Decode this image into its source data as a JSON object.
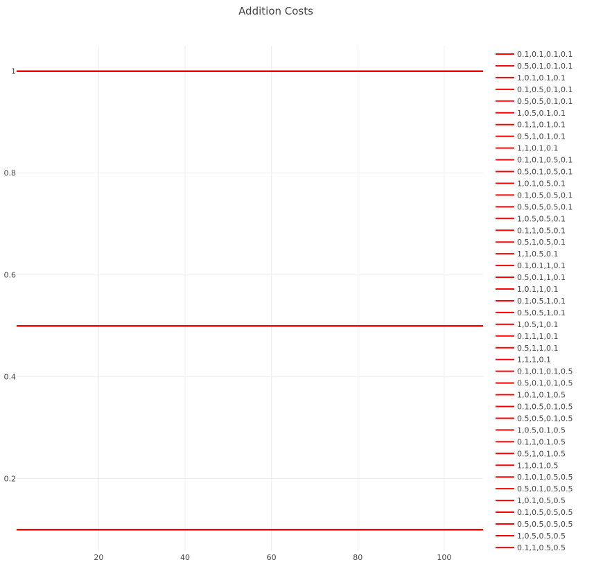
{
  "chart_data": {
    "type": "line",
    "title": "Addition Costs",
    "xlabel": "",
    "ylabel": "",
    "xlim": [
      1,
      109
    ],
    "ylim": [
      0.058,
      1.05
    ],
    "x_ticks": [
      20,
      40,
      60,
      80,
      100
    ],
    "y_ticks": [
      0.2,
      0.4,
      0.6,
      0.8,
      1
    ],
    "y_tick_labels": [
      "0.2",
      "0.4",
      "0.6",
      "0.8",
      "1"
    ],
    "x_tick_labels": [
      "20",
      "40",
      "60",
      "80",
      "100"
    ],
    "grid": true,
    "legend_position": "right",
    "line_color": "#ff0000",
    "x": [
      1,
      109
    ],
    "series": [
      {
        "name": "0.1,0.1,0.1,0.1",
        "values": [
          0.1,
          0.1
        ]
      },
      {
        "name": "0.5,0.1,0.1,0.1",
        "values": [
          0.5,
          0.5
        ]
      },
      {
        "name": "1,0.1,0.1,0.1",
        "values": [
          1,
          1
        ]
      },
      {
        "name": "0.1,0.5,0.1,0.1",
        "values": [
          0.1,
          0.1
        ]
      },
      {
        "name": "0.5,0.5,0.1,0.1",
        "values": [
          0.5,
          0.5
        ]
      },
      {
        "name": "1,0.5,0.1,0.1",
        "values": [
          1,
          1
        ]
      },
      {
        "name": "0.1,1,0.1,0.1",
        "values": [
          0.1,
          0.1
        ]
      },
      {
        "name": "0.5,1,0.1,0.1",
        "values": [
          0.5,
          0.5
        ]
      },
      {
        "name": "1,1,0.1,0.1",
        "values": [
          1,
          1
        ]
      },
      {
        "name": "0.1,0.1,0.5,0.1",
        "values": [
          0.1,
          0.1
        ]
      },
      {
        "name": "0.5,0.1,0.5,0.1",
        "values": [
          0.5,
          0.5
        ]
      },
      {
        "name": "1,0.1,0.5,0.1",
        "values": [
          1,
          1
        ]
      },
      {
        "name": "0.1,0.5,0.5,0.1",
        "values": [
          0.1,
          0.1
        ]
      },
      {
        "name": "0.5,0.5,0.5,0.1",
        "values": [
          0.5,
          0.5
        ]
      },
      {
        "name": "1,0.5,0.5,0.1",
        "values": [
          1,
          1
        ]
      },
      {
        "name": "0.1,1,0.5,0.1",
        "values": [
          0.1,
          0.1
        ]
      },
      {
        "name": "0.5,1,0.5,0.1",
        "values": [
          0.5,
          0.5
        ]
      },
      {
        "name": "1,1,0.5,0.1",
        "values": [
          1,
          1
        ]
      },
      {
        "name": "0.1,0.1,1,0.1",
        "values": [
          0.1,
          0.1
        ]
      },
      {
        "name": "0.5,0.1,1,0.1",
        "values": [
          0.5,
          0.5
        ]
      },
      {
        "name": "1,0.1,1,0.1",
        "values": [
          1,
          1
        ]
      },
      {
        "name": "0.1,0.5,1,0.1",
        "values": [
          0.1,
          0.1
        ]
      },
      {
        "name": "0.5,0.5,1,0.1",
        "values": [
          0.5,
          0.5
        ]
      },
      {
        "name": "1,0.5,1,0.1",
        "values": [
          1,
          1
        ]
      },
      {
        "name": "0.1,1,1,0.1",
        "values": [
          0.1,
          0.1
        ]
      },
      {
        "name": "0.5,1,1,0.1",
        "values": [
          0.5,
          0.5
        ]
      },
      {
        "name": "1,1,1,0.1",
        "values": [
          1,
          1
        ]
      },
      {
        "name": "0.1,0.1,0.1,0.5",
        "values": [
          0.1,
          0.1
        ]
      },
      {
        "name": "0.5,0.1,0.1,0.5",
        "values": [
          0.5,
          0.5
        ]
      },
      {
        "name": "1,0.1,0.1,0.5",
        "values": [
          1,
          1
        ]
      },
      {
        "name": "0.1,0.5,0.1,0.5",
        "values": [
          0.1,
          0.1
        ]
      },
      {
        "name": "0.5,0.5,0.1,0.5",
        "values": [
          0.5,
          0.5
        ]
      },
      {
        "name": "1,0.5,0.1,0.5",
        "values": [
          1,
          1
        ]
      },
      {
        "name": "0.1,1,0.1,0.5",
        "values": [
          0.1,
          0.1
        ]
      },
      {
        "name": "0.5,1,0.1,0.5",
        "values": [
          0.5,
          0.5
        ]
      },
      {
        "name": "1,1,0.1,0.5",
        "values": [
          1,
          1
        ]
      },
      {
        "name": "0.1,0.1,0.5,0.5",
        "values": [
          0.1,
          0.1
        ]
      },
      {
        "name": "0.5,0.1,0.5,0.5",
        "values": [
          0.5,
          0.5
        ]
      },
      {
        "name": "1,0.1,0.5,0.5",
        "values": [
          1,
          1
        ]
      },
      {
        "name": "0.1,0.5,0.5,0.5",
        "values": [
          0.1,
          0.1
        ]
      },
      {
        "name": "0.5,0.5,0.5,0.5",
        "values": [
          0.5,
          0.5
        ]
      },
      {
        "name": "1,0.5,0.5,0.5",
        "values": [
          1,
          1
        ]
      },
      {
        "name": "0.1,1,0.5,0.5",
        "values": [
          0.1,
          0.1
        ]
      }
    ]
  }
}
